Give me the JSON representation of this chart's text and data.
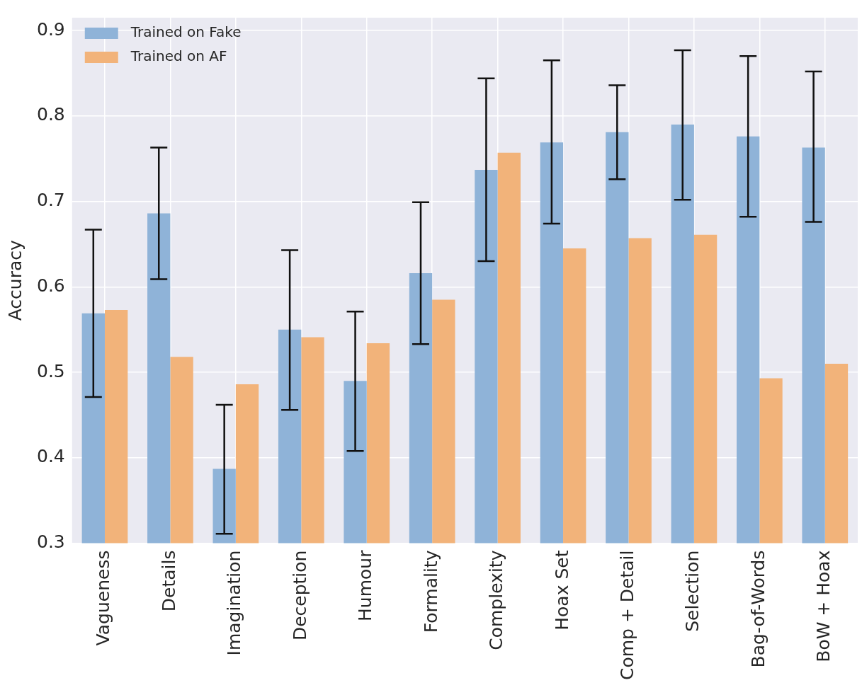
{
  "chart_data": {
    "type": "bar",
    "ylabel": "Accuracy",
    "categories": [
      "Vagueness",
      "Details",
      "Imagination",
      "Deception",
      "Humour",
      "Formality",
      "Complexity",
      "Hoax Set",
      "Comp + Detail",
      "Selection",
      "Bag-of-Words",
      "BoW + Hoax"
    ],
    "series": [
      {
        "name": "Trained on Fake",
        "color": "#8fb3d8",
        "values": [
          0.569,
          0.686,
          0.387,
          0.55,
          0.49,
          0.616,
          0.737,
          0.769,
          0.781,
          0.79,
          0.776,
          0.763
        ],
        "errors": [
          [
            0.471,
            0.667
          ],
          [
            0.609,
            0.763
          ],
          [
            0.311,
            0.462
          ],
          [
            0.456,
            0.643
          ],
          [
            0.408,
            0.571
          ],
          [
            0.533,
            0.699
          ],
          [
            0.63,
            0.844
          ],
          [
            0.674,
            0.865
          ],
          [
            0.726,
            0.836
          ],
          [
            0.702,
            0.877
          ],
          [
            0.682,
            0.87
          ],
          [
            0.676,
            0.852
          ]
        ]
      },
      {
        "name": "Trained on AF",
        "color": "#f2b37a",
        "values": [
          0.573,
          0.518,
          0.486,
          0.541,
          0.534,
          0.585,
          0.757,
          0.645,
          0.657,
          0.661,
          0.493,
          0.51
        ]
      }
    ],
    "ylim": [
      0.3,
      0.915
    ],
    "yticks": [
      0.3,
      0.4,
      0.5,
      0.6,
      0.7,
      0.8,
      0.9
    ],
    "grid": true,
    "legend": "top left"
  }
}
